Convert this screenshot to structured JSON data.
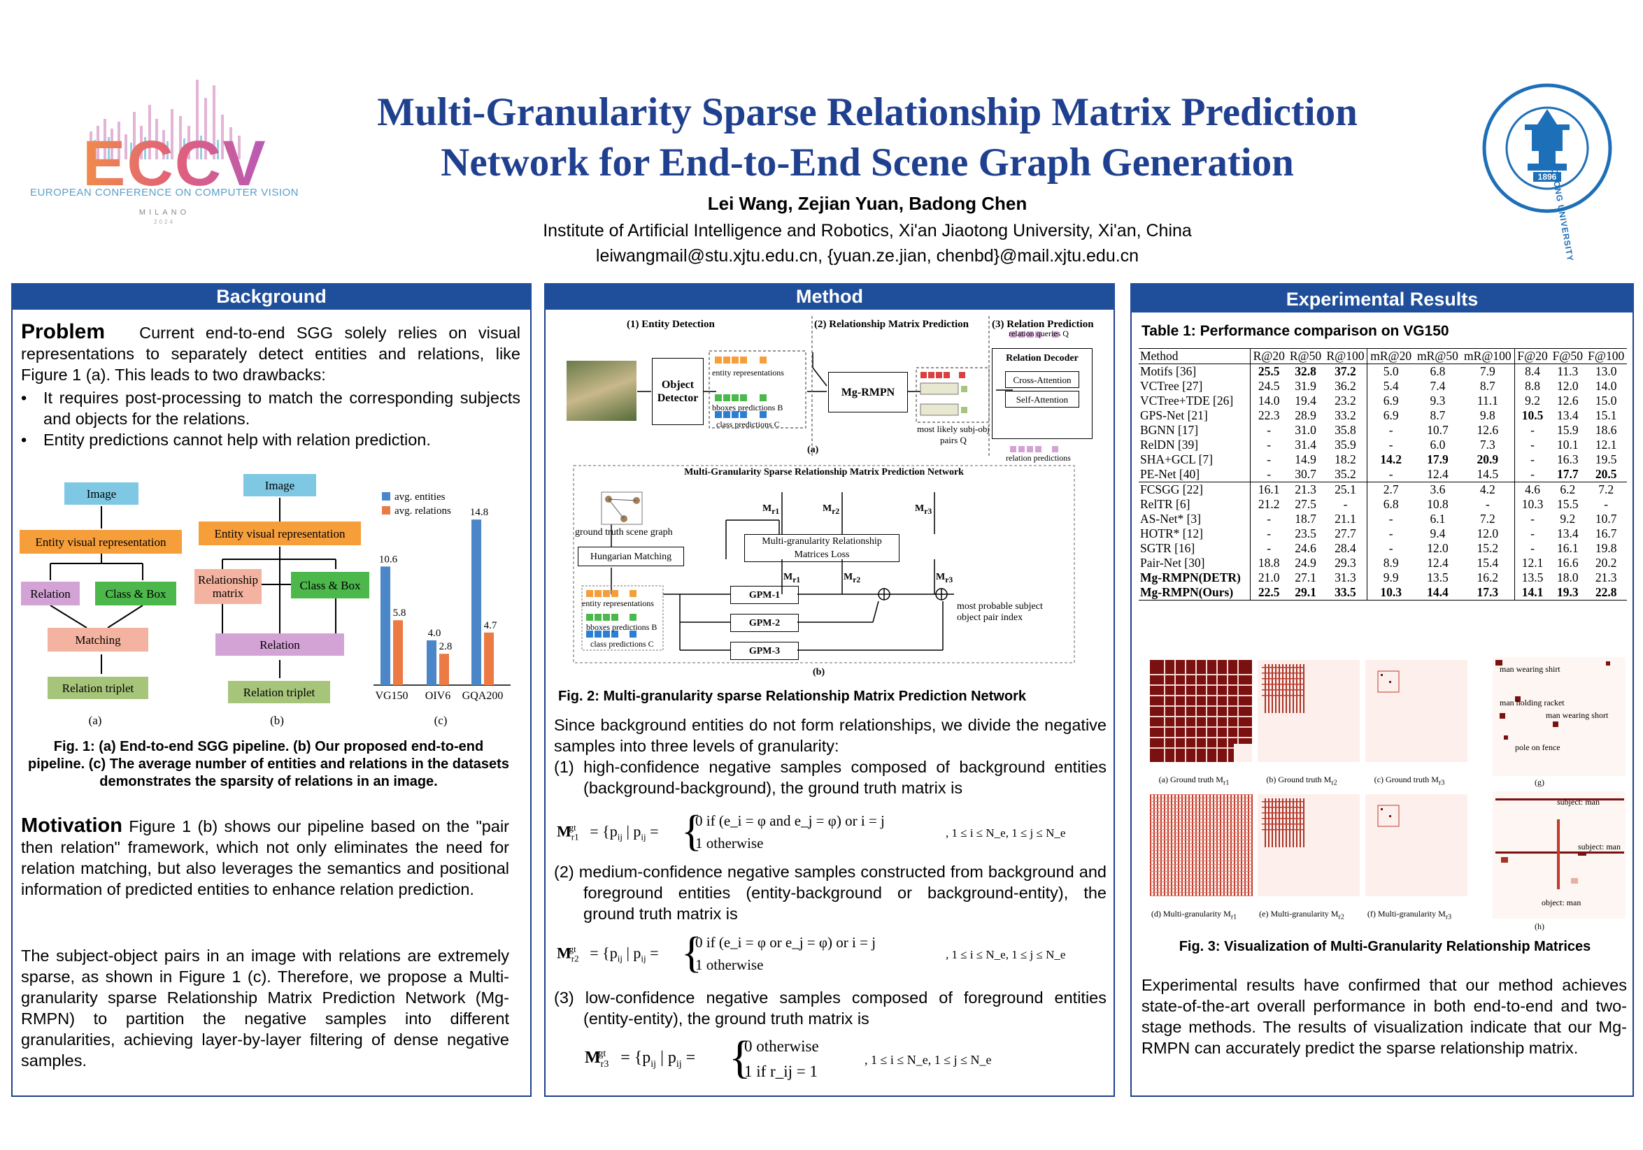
{
  "header": {
    "title_line1": "Multi-Granularity Sparse Relationship Matrix Prediction",
    "title_line2": "Network for End-to-End Scene Graph Generation",
    "authors": "Lei Wang, Zejian Yuan, Badong Chen",
    "affiliation": "Institute of Artificial Intelligence and Robotics, Xi'an Jiaotong University, Xi'an, China",
    "emails": "leiwangmail@stu.xjtu.edu.cn, {yuan.ze.jian, chenbd}@mail.xjtu.edu.cn",
    "eccv_logo_text": "ECCV",
    "eccv_subtitle": "EUROPEAN CONFERENCE ON COMPUTER VISION",
    "eccv_city": "MILANO",
    "eccv_year": "2024",
    "xjtu_ring_text": "XI'AN JIAOTONG UNIVERSITY",
    "xjtu_year": "1896"
  },
  "background": {
    "heading": "Background",
    "problem_title": "Problem",
    "problem_text": "Current end-to-end SGG solely relies on visual representations to separately detect entities and relations, like Figure 1 (a). This leads to two drawbacks:",
    "bullets": [
      "It requires post-processing to match the corresponding subjects and objects for the relations.",
      "Entity predictions cannot help with relation prediction."
    ],
    "fig_a": {
      "image": "Image",
      "entity": "Entity visual representation",
      "relation": "Relation",
      "classbox": "Class & Box",
      "matching": "Matching",
      "triplet": "Relation triplet",
      "label": "(a)"
    },
    "fig_b": {
      "image": "Image",
      "entity": "Entity visual representation",
      "relmatrix": "Relationship matrix",
      "classbox": "Class & Box",
      "relation": "Relation",
      "triplet": "Relation triplet",
      "label": "(b)"
    },
    "fig_c": {
      "legend_entities": "avg. entities",
      "legend_relations": "avg. relations",
      "label": "(c)"
    },
    "fig1_caption": "Fig. 1: (a) End-to-end SGG pipeline. (b) Our proposed end-to-end pipeline. (c) The average number of entities and relations in the datasets demonstrates the sparsity of relations in an image.",
    "motivation_title": "Motivation",
    "motivation_text": "Figure 1 (b) shows our pipeline based on the \"pair then relation\" framework, which not only eliminates the need for relation matching, but also leverages the semantics and positional information of predicted entities to enhance relation prediction.",
    "para2": "The subject-object pairs in an image with relations are extremely sparse, as shown in Figure 1 (c). Therefore, we propose a Multi-granularity sparse Relationship Matrix Prediction Network (Mg-RMPN) to partition the negative samples into different granularities, achieving layer-by-layer filtering of dense negative samples."
  },
  "chart_data": {
    "type": "bar",
    "categories": [
      "VG150",
      "OIV6",
      "GQA200"
    ],
    "series": [
      {
        "name": "avg. entities",
        "values": [
          10.6,
          4.0,
          14.8
        ],
        "color": "#4a86c8"
      },
      {
        "name": "avg. relations",
        "values": [
          5.8,
          2.8,
          4.7
        ],
        "color": "#ec7a45"
      }
    ],
    "title": "",
    "xlabel": "",
    "ylabel": "",
    "ylim": [
      0,
      15
    ],
    "legend": "top-left",
    "grid": false
  },
  "method": {
    "heading": "Method",
    "entity_detection": "(1) Entity Detection",
    "rel_matrix_pred": "(2) Relationship Matrix Prediction",
    "relation_pred": "(3) Relation Prediction",
    "object_detector": "Object Detector",
    "entity_repr": "entity representations",
    "bbox_pred": "bboxes predictions B",
    "class_pred": "class predictions C",
    "mgrmpn": "Mg-RMPN",
    "pairs_label": "most likely subj-obj pairs Q",
    "relation_queries": "relation queries Q",
    "relation_decoder": "Relation Decoder",
    "cross_attention": "Cross-Attention",
    "self_attention": "Self-Attention",
    "relation_predictions": "relation predictions",
    "label_a": "(a)",
    "network_title": "Multi-Granularity Sparse Relationship Matrix Prediction Network",
    "gt_scene_graph": "ground truth scene graph",
    "hungarian": "Hungarian Matching",
    "loss": "Multi-granularity Relationship Matrices Loss",
    "gpm1": "GPM-1",
    "gpm2": "GPM-2",
    "gpm3": "GPM-3",
    "most_probable": "most probable subject object pair index",
    "label_b": "(b)",
    "fig2_caption": "Fig. 2: Multi-granularity sparse Relationship Matrix Prediction Network",
    "intro": "Since background entities do not form relationships, we divide the negative samples into three levels of granularity:",
    "item1": "(1) high-confidence negative samples composed of background entities (background-background), the ground truth matrix is",
    "item2": "(2) medium-confidence negative samples constructed from background and foreground entities (entity-background or background-entity), the ground truth matrix is",
    "item3": "(3) low-confidence negative samples composed of foreground entities (entity-entity), the ground truth matrix is",
    "eq1_case1": "0   if (e_i = φ and e_j = φ) or i = j",
    "eq1_case2": "1   otherwise",
    "eq2_case1": "0   if (e_i = φ or e_j = φ) or i = j",
    "eq2_case2": "1   otherwise",
    "eq3_case1": "0   otherwise",
    "eq3_case2": "1   if r_ij = 1",
    "eq_range": ", 1 ≤ i ≤ N_e, 1 ≤ j ≤ N_e"
  },
  "results": {
    "heading": "Experimental Results",
    "table_title": "Table 1: Performance comparison on VG150",
    "columns": [
      "Method",
      "R@20",
      "R@50",
      "R@100",
      "mR@20",
      "mR@50",
      "mR@100",
      "F@20",
      "F@50",
      "F@100"
    ],
    "rows1": [
      [
        "Motifs [36]",
        "25.5",
        "32.8",
        "37.2",
        "5.0",
        "6.8",
        "7.9",
        "8.4",
        "11.3",
        "13.0"
      ],
      [
        "VCTree [27]",
        "24.5",
        "31.9",
        "36.2",
        "5.4",
        "7.4",
        "8.7",
        "8.8",
        "12.0",
        "14.0"
      ],
      [
        "VCTree+TDE [26]",
        "14.0",
        "19.4",
        "23.2",
        "6.9",
        "9.3",
        "11.1",
        "9.2",
        "12.6",
        "15.0"
      ],
      [
        "GPS-Net [21]",
        "22.3",
        "28.9",
        "33.2",
        "6.9",
        "8.7",
        "9.8",
        "10.5",
        "13.4",
        "15.1"
      ],
      [
        "BGNN [17]",
        "-",
        "31.0",
        "35.8",
        "-",
        "10.7",
        "12.6",
        "-",
        "15.9",
        "18.6"
      ],
      [
        "RelDN [39]",
        "-",
        "31.4",
        "35.9",
        "-",
        "6.0",
        "7.3",
        "-",
        "10.1",
        "12.1"
      ],
      [
        "SHA+GCL [7]",
        "-",
        "14.9",
        "18.2",
        "14.2",
        "17.9",
        "20.9",
        "-",
        "16.3",
        "19.5"
      ],
      [
        "PE-Net [40]",
        "-",
        "30.7",
        "35.2",
        "-",
        "12.4",
        "14.5",
        "-",
        "17.7",
        "20.5"
      ]
    ],
    "rows2": [
      [
        "FCSGG [22]",
        "16.1",
        "21.3",
        "25.1",
        "2.7",
        "3.6",
        "4.2",
        "4.6",
        "6.2",
        "7.2"
      ],
      [
        "RelTR [6]",
        "21.2",
        "27.5",
        "-",
        "6.8",
        "10.8",
        "-",
        "10.3",
        "15.5",
        "-"
      ],
      [
        "AS-Net* [3]",
        "-",
        "18.7",
        "21.1",
        "-",
        "6.1",
        "7.2",
        "-",
        "9.2",
        "10.7"
      ],
      [
        "HOTR* [12]",
        "-",
        "23.5",
        "27.7",
        "-",
        "9.4",
        "12.0",
        "-",
        "13.4",
        "16.7"
      ],
      [
        "SGTR [16]",
        "-",
        "24.6",
        "28.4",
        "-",
        "12.0",
        "15.2",
        "-",
        "16.1",
        "19.8"
      ],
      [
        "Pair-Net [30]",
        "18.8",
        "24.9",
        "29.3",
        "8.9",
        "12.4",
        "15.4",
        "12.1",
        "16.6",
        "20.2"
      ],
      [
        "Mg-RMPN(DETR)",
        "21.0",
        "27.1",
        "31.3",
        "9.9",
        "13.5",
        "16.2",
        "13.5",
        "18.0",
        "21.3"
      ],
      [
        "Mg-RMPN(Ours)",
        "22.5",
        "29.1",
        "33.5",
        "10.3",
        "14.4",
        "17.3",
        "14.1",
        "19.3",
        "22.8"
      ]
    ],
    "vis_captions": [
      "(a) Ground truth M",
      "(b) Ground truth M",
      "(c) Ground truth M",
      "(d) Multi-granularity M",
      "(e) Multi-granularity M",
      "(f) Multi-granularity M",
      "(g)",
      "(h)"
    ],
    "vis_labels": {
      "man_wearing_shirt": "man wearing shirt",
      "man_holding_racket": "man holding racket",
      "man_wearing_short": "man wearing short",
      "pole_on_fence": "pole on fence",
      "subject_man_1": "subject: man",
      "subject_man_2": "subject: man",
      "object_man": "object: man"
    },
    "fig3_caption": "Fig. 3: Visualization of Multi-Granularity Relationship Matrices",
    "conclusion": "Experimental results have confirmed that our method achieves state-of-the-art overall performance in both end-to-end and two-stage methods. The results of visualization indicate that our Mg-RMPN can accurately predict the sparse relationship matrix."
  }
}
